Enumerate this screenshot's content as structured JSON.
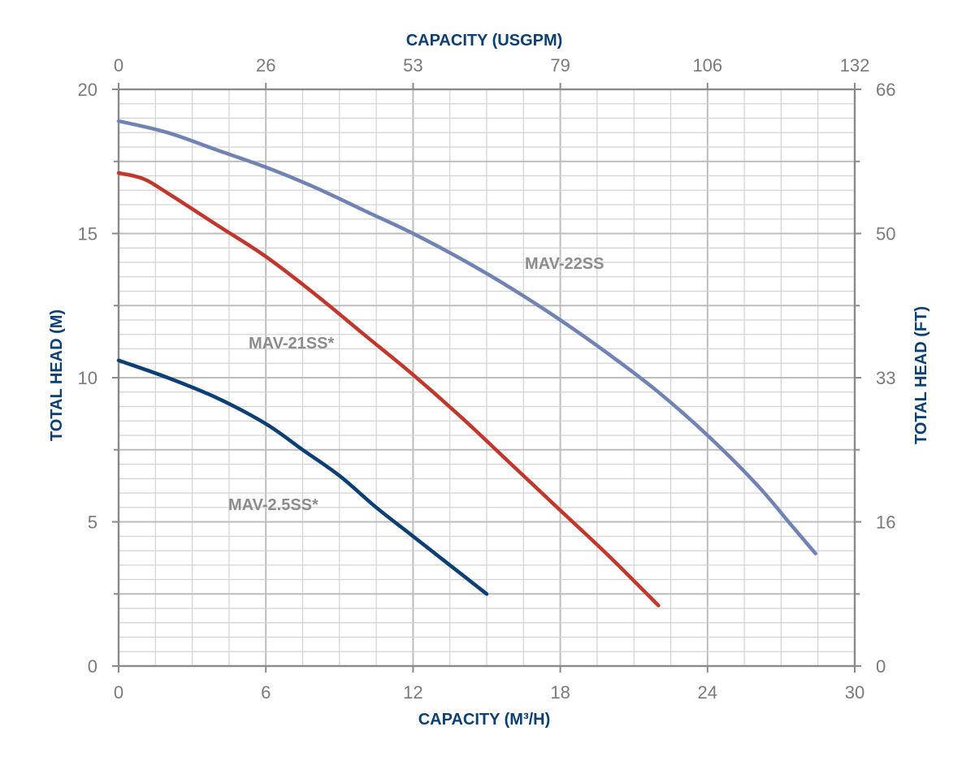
{
  "chart_data": {
    "type": "line",
    "title": "",
    "xlabel": "CAPACITY (M³/H)",
    "x2label": "CAPACITY (USGPM)",
    "ylabel": "TOTAL HEAD (M)",
    "y2label": "TOTAL HEAD (FT)",
    "xlim": [
      0,
      30
    ],
    "ylim": [
      0,
      20
    ],
    "x_ticks": [
      0,
      6,
      12,
      18,
      24,
      30
    ],
    "y_ticks": [
      0,
      5,
      10,
      15,
      20
    ],
    "x2_ticks": [
      "0",
      "26",
      "53",
      "79",
      "106",
      "132"
    ],
    "y2_ticks": [
      "0",
      "16",
      "33",
      "50",
      "66"
    ],
    "grid": true,
    "legend": "inline labels",
    "series": [
      {
        "name": "MAV-22SS",
        "color": "#7183b5",
        "points": [
          [
            0,
            18.9
          ],
          [
            2,
            18.5
          ],
          [
            4,
            17.9
          ],
          [
            6,
            17.3
          ],
          [
            8,
            16.6
          ],
          [
            10,
            15.8
          ],
          [
            12,
            15.0
          ],
          [
            14,
            14.1
          ],
          [
            16,
            13.1
          ],
          [
            18,
            12.0
          ],
          [
            20,
            10.8
          ],
          [
            22,
            9.5
          ],
          [
            24,
            8.0
          ],
          [
            26,
            6.3
          ],
          [
            27.5,
            4.8
          ],
          [
            28.4,
            3.9
          ]
        ]
      },
      {
        "name": "MAV-21SS*",
        "color": "#c2372c",
        "points": [
          [
            0,
            17.1
          ],
          [
            1,
            16.9
          ],
          [
            2,
            16.4
          ],
          [
            4,
            15.3
          ],
          [
            6,
            14.2
          ],
          [
            8,
            12.9
          ],
          [
            10,
            11.5
          ],
          [
            12,
            10.1
          ],
          [
            14,
            8.6
          ],
          [
            16,
            7.0
          ],
          [
            18,
            5.4
          ],
          [
            20,
            3.8
          ],
          [
            22,
            2.1
          ]
        ]
      },
      {
        "name": "MAV-2.5SS*",
        "color": "#0c3f73",
        "points": [
          [
            0,
            10.6
          ],
          [
            2,
            10.0
          ],
          [
            4,
            9.3
          ],
          [
            6,
            8.4
          ],
          [
            7.5,
            7.5
          ],
          [
            9,
            6.6
          ],
          [
            10.5,
            5.5
          ],
          [
            12,
            4.5
          ],
          [
            13.5,
            3.5
          ],
          [
            15,
            2.5
          ]
        ]
      }
    ]
  }
}
